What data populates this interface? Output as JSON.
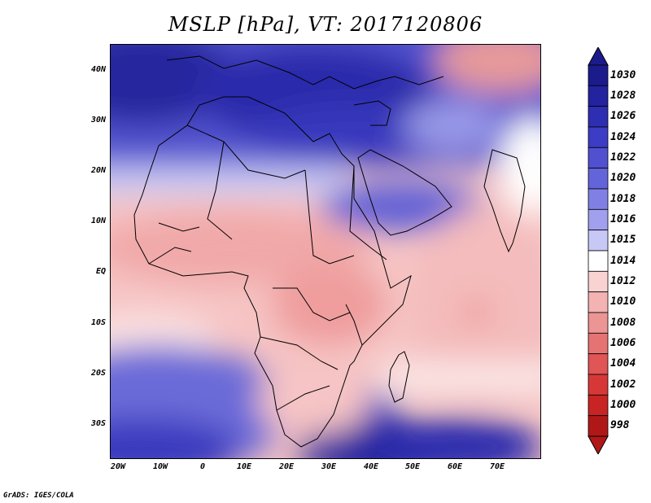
{
  "title": "MSLP [hPa], VT: 2017120806",
  "credit": "GrADS: IGES/COLA",
  "y_ticks": [
    "40N",
    "30N",
    "20N",
    "10N",
    "EQ",
    "10S",
    "20S",
    "30S"
  ],
  "x_ticks": [
    "20W",
    "10W",
    "0",
    "10E",
    "20E",
    "30E",
    "40E",
    "50E",
    "60E",
    "70E"
  ],
  "colorbar": {
    "levels": [
      "1030",
      "1028",
      "1026",
      "1024",
      "1022",
      "1020",
      "1018",
      "1016",
      "1015",
      "1014",
      "1012",
      "1010",
      "1008",
      "1006",
      "1004",
      "1002",
      "1000",
      "998"
    ],
    "colors": [
      "#1b1b8c",
      "#23239f",
      "#2e2eb3",
      "#3c3cc4",
      "#5050d0",
      "#6464da",
      "#8080e4",
      "#a0a0ee",
      "#c8c8f6",
      "#ffffff",
      "#f9d2d2",
      "#f3b3b3",
      "#ec9595",
      "#e67373",
      "#e05555",
      "#d63838",
      "#c82424",
      "#b01818"
    ]
  },
  "map": {
    "extent": {
      "lon": [
        -23,
        80
      ],
      "lat": [
        -37,
        45
      ]
    },
    "field": "Mean sea level pressure"
  }
}
